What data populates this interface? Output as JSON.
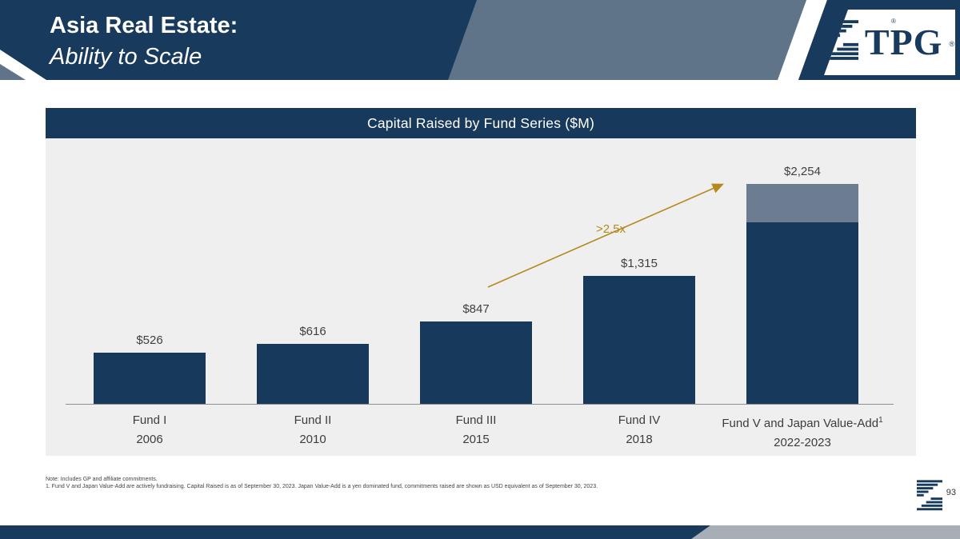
{
  "header": {
    "title_line1": "Asia Real Estate:",
    "title_line2": "Ability to Scale",
    "logo_text": "TPG",
    "registered_mark": "®"
  },
  "icons": {
    "logo_mark": "tpg-stripes-mark-icon",
    "footer_mark": "tpg-stripes-mark-icon",
    "arrow": "growth-arrow-icon"
  },
  "chart_data": {
    "type": "bar",
    "title": "Capital Raised by Fund Series ($M)",
    "ylabel": "",
    "xlabel": "",
    "ylim": [
      0,
      2400
    ],
    "grid": false,
    "legend": "none",
    "bar_color": "#17395C",
    "stack_color": "#6C7D91",
    "annotation": {
      "text": ">2.5x",
      "color": "#B5891C"
    },
    "categories": [
      "Fund I",
      "Fund II",
      "Fund III",
      "Fund IV",
      "Fund V and Japan Value-Add"
    ],
    "years": [
      "2006",
      "2010",
      "2015",
      "2018",
      "2022-2023"
    ],
    "values": [
      526,
      616,
      847,
      1315,
      2254
    ],
    "bars": [
      {
        "label": "Fund I",
        "year": "2006",
        "value": 526,
        "value_label": "$526"
      },
      {
        "label": "Fund II",
        "year": "2010",
        "value": 616,
        "value_label": "$616"
      },
      {
        "label": "Fund III",
        "year": "2015",
        "value": 847,
        "value_label": "$847"
      },
      {
        "label": "Fund IV",
        "year": "2018",
        "value": 1315,
        "value_label": "$1,315"
      },
      {
        "label": "Fund V and Japan Value-Add",
        "label_sup": "1",
        "year": "2022-2023",
        "value": 2254,
        "value_label": "$2,254",
        "segments": [
          {
            "value": 1860,
            "color_key": "bar_color"
          },
          {
            "value": 394,
            "color_key": "stack_color"
          }
        ]
      }
    ]
  },
  "footnotes": {
    "note": "Note: Includes GP and affiliate commitments.",
    "footnote1": "1.  Fund V and Japan Value-Add are actively fundraising. Capital Raised is as of September 30, 2023.   Japan Value-Add is a yen dominated fund, commitments raised are shown as USD equivalent as of September 30, 2023."
  },
  "footer": {
    "page_number": "93"
  }
}
